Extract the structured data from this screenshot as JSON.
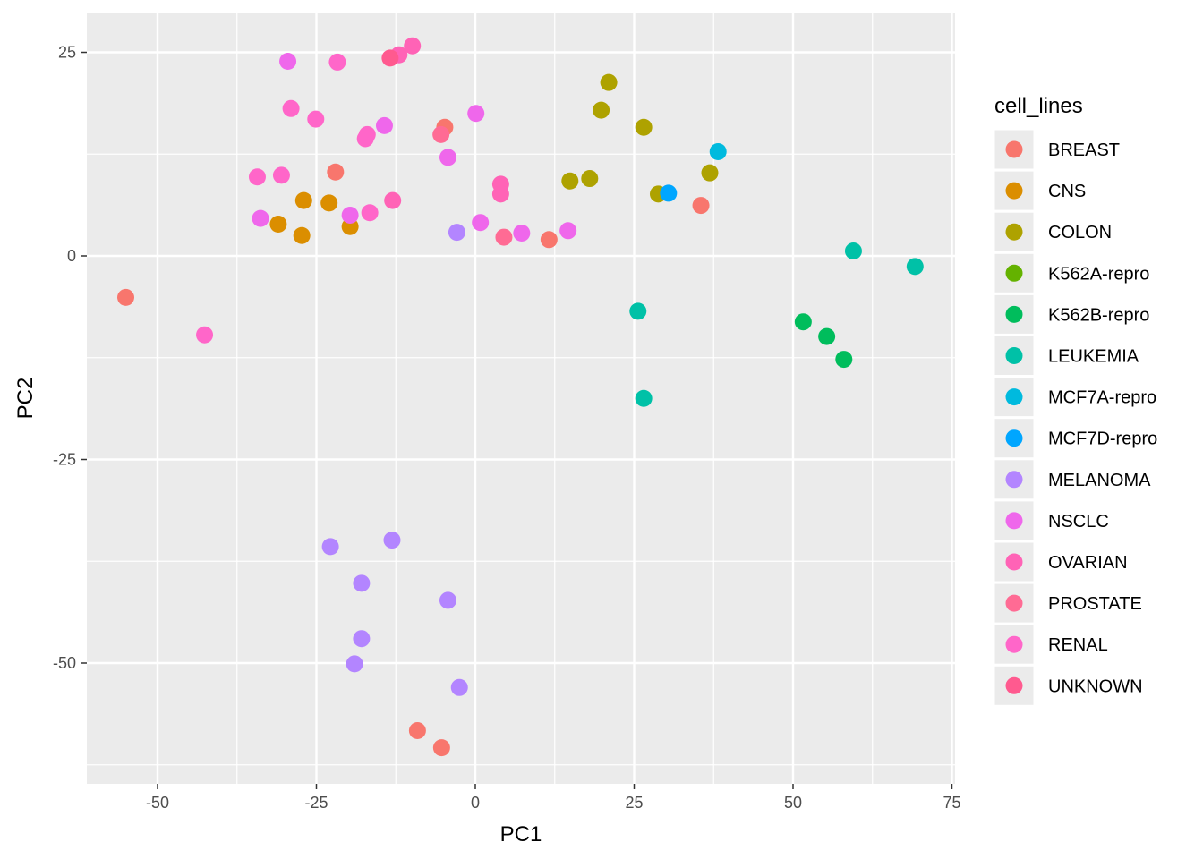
{
  "chart_data": {
    "type": "scatter",
    "xlabel": "PC1",
    "ylabel": "PC2",
    "xlim": [
      -62,
      75
    ],
    "ylim": [
      -65,
      30
    ],
    "x_ticks": [
      -50,
      -25,
      0,
      25,
      50,
      75
    ],
    "y_ticks": [
      -50,
      -25,
      0,
      25
    ],
    "x_tick_labels": [
      "-50",
      "-25",
      "0",
      "25",
      "50",
      "75"
    ],
    "y_tick_labels": [
      "-50",
      "-25",
      "0",
      "25"
    ],
    "grid": true,
    "legend_title": "cell_lines",
    "legend_position": "right",
    "series": [
      {
        "name": "BREAST",
        "color": "#F8766D",
        "points": [
          [
            -55.0,
            -5.1
          ],
          [
            -22.0,
            10.3
          ],
          [
            -4.8,
            15.8
          ],
          [
            11.6,
            2.0
          ],
          [
            35.5,
            6.2
          ],
          [
            -9.1,
            -58.3
          ],
          [
            -5.3,
            -60.4
          ]
        ]
      },
      {
        "name": "CNS",
        "color": "#DB8E00",
        "points": [
          [
            -31.0,
            3.9
          ],
          [
            -27.0,
            6.8
          ],
          [
            -27.3,
            2.5
          ],
          [
            -23.0,
            6.5
          ],
          [
            -19.7,
            3.6
          ]
        ]
      },
      {
        "name": "COLON",
        "color": "#AEA200",
        "points": [
          [
            21.0,
            21.3
          ],
          [
            19.8,
            17.9
          ],
          [
            26.5,
            15.8
          ],
          [
            14.9,
            9.2
          ],
          [
            18.0,
            9.5
          ],
          [
            28.8,
            7.6
          ],
          [
            36.9,
            10.2
          ]
        ]
      },
      {
        "name": "K562A-repro",
        "color": "#64B200",
        "points": []
      },
      {
        "name": "K562B-repro",
        "color": "#00BD5C",
        "points": [
          [
            51.6,
            -8.1
          ],
          [
            55.3,
            -9.9
          ],
          [
            58.0,
            -12.7
          ]
        ]
      },
      {
        "name": "LEUKEMIA",
        "color": "#00C1A7",
        "points": [
          [
            59.5,
            0.6
          ],
          [
            69.2,
            -1.3
          ],
          [
            25.6,
            -6.8
          ],
          [
            26.5,
            -17.5
          ]
        ]
      },
      {
        "name": "MCF7A-repro",
        "color": "#00BADE",
        "points": [
          [
            38.2,
            12.8
          ]
        ]
      },
      {
        "name": "MCF7D-repro",
        "color": "#00A6FF",
        "points": [
          [
            30.4,
            7.7
          ]
        ]
      },
      {
        "name": "MELANOMA",
        "color": "#B385FF",
        "points": [
          [
            -2.9,
            2.9
          ],
          [
            -22.8,
            -35.7
          ],
          [
            -13.1,
            -34.9
          ],
          [
            -17.9,
            -40.2
          ],
          [
            -4.3,
            -42.3
          ],
          [
            -17.9,
            -47.0
          ],
          [
            -19.0,
            -50.1
          ],
          [
            -2.5,
            -53.0
          ]
        ]
      },
      {
        "name": "NSCLC",
        "color": "#EF67EB",
        "points": [
          [
            -29.5,
            23.9
          ],
          [
            -14.3,
            16.0
          ],
          [
            0.1,
            17.5
          ],
          [
            -4.3,
            12.1
          ],
          [
            -33.8,
            4.6
          ],
          [
            -19.7,
            5.0
          ],
          [
            0.8,
            4.1
          ],
          [
            7.3,
            2.8
          ],
          [
            14.6,
            3.1
          ]
        ]
      },
      {
        "name": "OVARIAN",
        "color": "#FF63B6",
        "points": [
          [
            -12.0,
            24.7
          ],
          [
            -9.9,
            25.8
          ],
          [
            -13.0,
            6.8
          ],
          [
            4.0,
            8.8
          ],
          [
            4.0,
            7.6
          ]
        ]
      },
      {
        "name": "PROSTATE",
        "color": "#FF6B94",
        "points": [
          [
            -5.4,
            14.9
          ],
          [
            4.5,
            2.3
          ]
        ]
      },
      {
        "name": "RENAL",
        "color": "#FF66C9",
        "points": [
          [
            -21.7,
            23.8
          ],
          [
            -29.0,
            18.1
          ],
          [
            -25.1,
            16.8
          ],
          [
            -17.3,
            14.4
          ],
          [
            -17.0,
            14.9
          ],
          [
            -34.3,
            9.7
          ],
          [
            -30.5,
            9.9
          ],
          [
            -16.6,
            5.3
          ],
          [
            -42.6,
            -9.7
          ]
        ]
      },
      {
        "name": "UNKNOWN",
        "color": "#FF5A8F",
        "points": [
          [
            -13.4,
            24.3
          ]
        ]
      }
    ]
  }
}
